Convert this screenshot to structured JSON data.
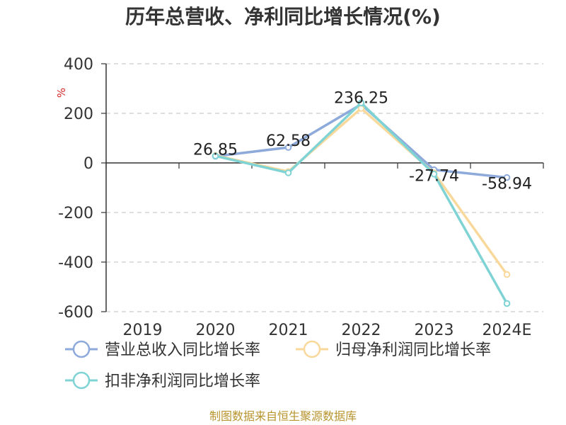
{
  "title": "历年总营收、净利同比增长情况(%)",
  "footer": "制图数据来自恒生聚源数据库",
  "chart_data": {
    "type": "line",
    "title": "历年总营收、净利同比增长情况(%)",
    "ylabel": "%",
    "xlabel": "",
    "ylim": [
      -600,
      400
    ],
    "yticks": [
      400,
      200,
      0,
      -200,
      -400,
      -600
    ],
    "ytick_labels": [
      "400",
      "200",
      "0",
      "-200",
      "-400",
      "-600"
    ],
    "categories": [
      "2019",
      "2020",
      "2021",
      "2022",
      "2023",
      "2024E"
    ],
    "grid": true,
    "legend_position": "bottom",
    "series": [
      {
        "name": "营业总收入同比增长率",
        "color": "#8eaadb",
        "values": [
          null,
          26.85,
          62.58,
          236.25,
          -27.74,
          -58.94
        ],
        "labels": [
          "",
          "26.85",
          "62.58",
          "236.25",
          "-27.74",
          "-58.94"
        ]
      },
      {
        "name": "归母净利润同比增长率",
        "color": "#f9d99b",
        "values": [
          null,
          30,
          -35,
          220,
          -40,
          -450
        ]
      },
      {
        "name": "扣非净利润同比增长率",
        "color": "#7fd3d4",
        "values": [
          null,
          28,
          -40,
          242,
          -45,
          -567
        ]
      }
    ]
  }
}
